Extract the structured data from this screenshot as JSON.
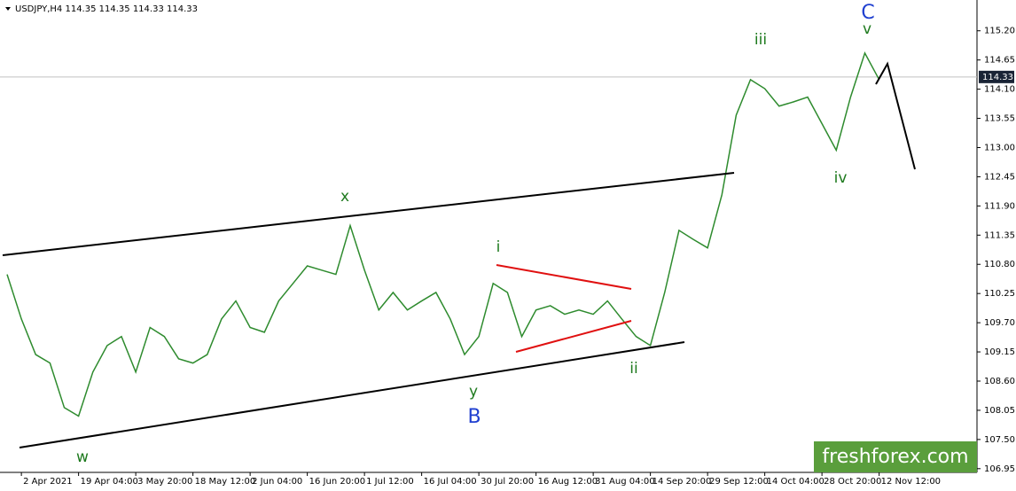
{
  "chart_data": {
    "type": "line",
    "header": "USDJPY,H4  114.35 114.35 114.33 114.33",
    "categories": [
      null,
      "2 Apr 2021",
      null,
      null,
      null,
      "19 Apr 04:00",
      null,
      null,
      null,
      "3 May 20:00",
      null,
      null,
      null,
      "18 May 12:00",
      null,
      null,
      null,
      "2 Jun 04:00",
      null,
      null,
      null,
      "16 Jun 20:00",
      null,
      null,
      null,
      "1 Jul 12:00",
      null,
      null,
      null,
      "16 Jul 04:00",
      null,
      null,
      null,
      "30 Jul 20:00",
      null,
      null,
      null,
      "16 Aug 12:00",
      null,
      null,
      null,
      "31 Aug 04:00",
      null,
      null,
      null,
      "14 Sep 20:00",
      null,
      null,
      null,
      "29 Sep 12:00",
      null,
      null,
      null,
      "14 Oct 04:00",
      null,
      null,
      null,
      "28 Oct 20:00",
      null,
      null,
      null,
      "12 Nov 12:00"
    ],
    "series": [
      {
        "name": "USDJPY,H4",
        "color": "#2e8b2e",
        "values": [
          110.61,
          109.77,
          109.1,
          108.94,
          108.1,
          107.94,
          108.77,
          109.27,
          109.44,
          108.77,
          109.61,
          109.44,
          109.02,
          108.94,
          109.1,
          109.77,
          110.11,
          109.61,
          109.52,
          110.11,
          110.44,
          110.77,
          110.69,
          110.61,
          111.53,
          110.69,
          109.94,
          110.27,
          109.94,
          110.11,
          110.27,
          109.77,
          109.1,
          109.44,
          110.44,
          110.27,
          109.44,
          109.94,
          110.02,
          109.86,
          109.94,
          109.86,
          110.11,
          109.77,
          109.44,
          109.27,
          110.27,
          111.44,
          111.27,
          111.11,
          112.11,
          113.61,
          114.28,
          114.11,
          113.78,
          113.86,
          113.95,
          113.45,
          112.95,
          113.95,
          114.78,
          114.28
        ]
      }
    ],
    "current_price": 114.33,
    "ylim": [
      106.88,
      115.78
    ],
    "yticks": [
      {
        "value": 115.2,
        "label": "115.20"
      },
      {
        "value": 114.65,
        "label": "114.65"
      },
      {
        "value": 114.1,
        "label": "114.10"
      },
      {
        "value": 113.55,
        "label": "113.55"
      },
      {
        "value": 113.0,
        "label": "113.00"
      },
      {
        "value": 112.45,
        "label": "112.45"
      },
      {
        "value": 111.9,
        "label": "111.90"
      },
      {
        "value": 111.35,
        "label": "111.35"
      },
      {
        "value": 110.8,
        "label": "110.80"
      },
      {
        "value": 110.25,
        "label": "110.25"
      },
      {
        "value": 109.7,
        "label": "109.70"
      },
      {
        "value": 109.15,
        "label": "109.15"
      },
      {
        "value": 108.6,
        "label": "108.60"
      },
      {
        "value": 108.05,
        "label": "108.05"
      },
      {
        "value": 107.5,
        "label": "107.50"
      },
      {
        "value": 106.95,
        "label": "106.95"
      }
    ],
    "wave_labels": [
      "w",
      "x",
      "y",
      "B",
      "i",
      "ii",
      "iii",
      "iv",
      "v",
      "C"
    ],
    "watermark": "freshforex.com"
  }
}
